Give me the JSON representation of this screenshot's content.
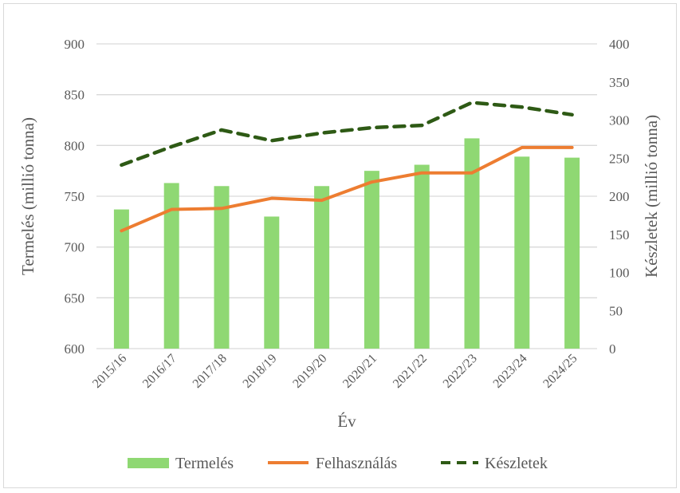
{
  "chart_data": {
    "type": "bar+line",
    "title": "",
    "xlabel": "Év",
    "ylabel": "Termelés (millió tonna)",
    "y2label": "Készletek (millió tonna)",
    "ylim": [
      600,
      900
    ],
    "y2lim": [
      0,
      400
    ],
    "yticks": [
      "600",
      "650",
      "700",
      "750",
      "800",
      "850",
      "900"
    ],
    "y2ticks": [
      "0",
      "50",
      "100",
      "150",
      "200",
      "250",
      "300",
      "350",
      "400"
    ],
    "grid": true,
    "legend_position": "bottom",
    "categories": [
      "2015/16",
      "2016/17",
      "2017/18",
      "2018/19",
      "2019/20",
      "2020/21",
      "2021/22",
      "2022/23",
      "2023/24",
      "2024/25"
    ],
    "series": [
      {
        "name": "Termelés",
        "type": "bar",
        "axis": "left",
        "color": "#8fd873",
        "values": [
          737,
          763,
          760,
          730,
          760,
          775,
          781,
          807,
          789,
          788
        ]
      },
      {
        "name": "Felhasználás",
        "type": "line",
        "axis": "left",
        "color": "#ed7d31",
        "values": [
          716,
          737,
          738,
          748,
          746,
          764,
          773,
          773,
          798,
          798
        ]
      },
      {
        "name": "Készletek",
        "type": "line-dashed",
        "axis": "right",
        "color": "#2e5a15",
        "values": [
          241,
          265,
          287,
          273,
          283,
          290,
          293,
          323,
          317,
          307
        ]
      }
    ]
  }
}
